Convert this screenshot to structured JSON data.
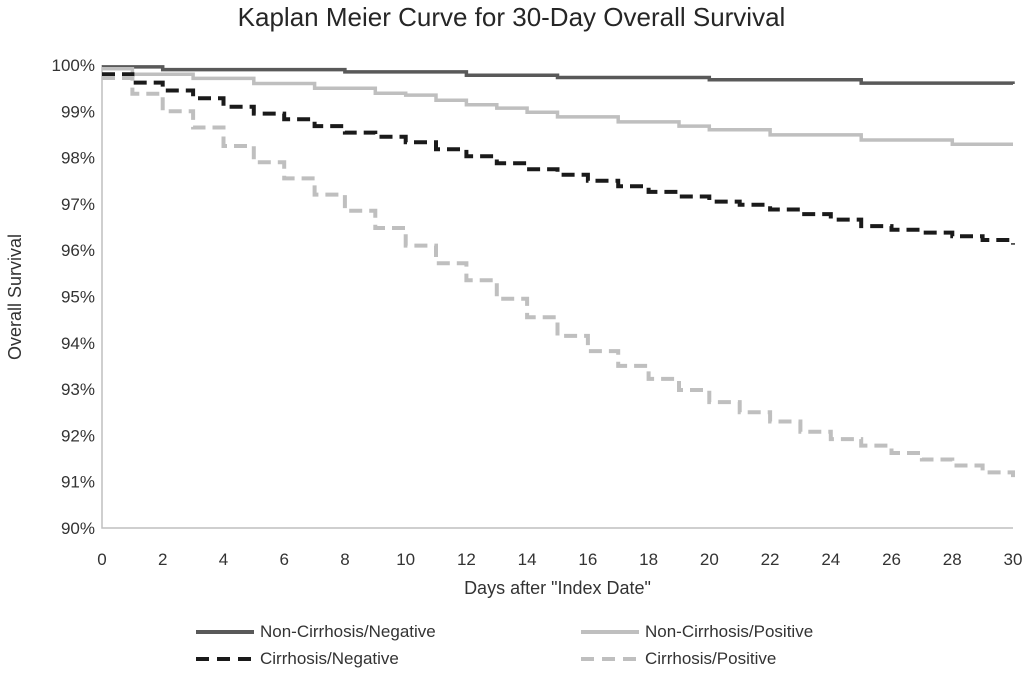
{
  "chart_data": {
    "type": "line",
    "subtype": "kaplan-meier-step",
    "title": "Kaplan Meier Curve for 30-Day Overall Survival",
    "xlabel": "Days after \"Index Date\"",
    "ylabel": "Overall Survival",
    "xlim": [
      0,
      30
    ],
    "ylim": [
      90,
      100
    ],
    "grid": false,
    "axis_line_color": "#BFBFBF",
    "x_ticks": [
      0,
      2,
      4,
      6,
      8,
      10,
      12,
      14,
      16,
      18,
      20,
      22,
      24,
      26,
      28,
      30
    ],
    "y_ticks": [
      "100%",
      "99%",
      "98%",
      "97%",
      "96%",
      "95%",
      "94%",
      "93%",
      "92%",
      "91%",
      "90%"
    ],
    "y_tick_values": [
      100,
      99,
      98,
      97,
      96,
      95,
      94,
      93,
      92,
      91,
      90
    ],
    "x": [
      0,
      1,
      2,
      3,
      4,
      5,
      6,
      7,
      8,
      9,
      10,
      11,
      12,
      13,
      14,
      15,
      16,
      17,
      18,
      19,
      20,
      21,
      22,
      23,
      24,
      25,
      26,
      27,
      28,
      29,
      30
    ],
    "series": [
      {
        "name": "Non-Cirrhosis/Negative",
        "color": "#595959",
        "style": "solid",
        "values": [
          99.96,
          99.96,
          99.9,
          99.9,
          99.9,
          99.9,
          99.9,
          99.9,
          99.85,
          99.85,
          99.85,
          99.85,
          99.78,
          99.78,
          99.78,
          99.73,
          99.73,
          99.73,
          99.73,
          99.73,
          99.68,
          99.68,
          99.68,
          99.68,
          99.68,
          99.61,
          99.61,
          99.61,
          99.61,
          99.61,
          99.59
        ]
      },
      {
        "name": "Non-Cirrhosis/Positive",
        "color": "#BFBFBF",
        "style": "solid",
        "values": [
          99.92,
          99.8,
          99.8,
          99.71,
          99.71,
          99.6,
          99.6,
          99.5,
          99.5,
          99.39,
          99.35,
          99.24,
          99.14,
          99.07,
          98.98,
          98.88,
          98.88,
          98.77,
          98.77,
          98.68,
          98.6,
          98.6,
          98.49,
          98.49,
          98.49,
          98.38,
          98.38,
          98.38,
          98.29,
          98.29,
          98.29
        ]
      },
      {
        "name": "Cirrhosis/Negative",
        "color": "#1A1A1A",
        "style": "dashed",
        "values": [
          99.8,
          99.62,
          99.45,
          99.28,
          99.1,
          98.95,
          98.83,
          98.68,
          98.54,
          98.45,
          98.33,
          98.18,
          98.03,
          97.88,
          97.75,
          97.63,
          97.5,
          97.38,
          97.26,
          97.16,
          97.05,
          96.98,
          96.88,
          96.78,
          96.66,
          96.52,
          96.44,
          96.38,
          96.3,
          96.22,
          96.12
        ]
      },
      {
        "name": "Cirrhosis/Positive",
        "color": "#BFBFBF",
        "style": "dashed",
        "values": [
          99.72,
          99.38,
          99.0,
          98.65,
          98.25,
          97.9,
          97.55,
          97.2,
          96.85,
          96.48,
          96.1,
          95.72,
          95.35,
          94.95,
          94.55,
          94.15,
          93.82,
          93.5,
          93.22,
          92.98,
          92.72,
          92.5,
          92.3,
          92.08,
          91.92,
          91.78,
          91.62,
          91.48,
          91.35,
          91.2,
          91.1
        ]
      }
    ],
    "legend": {
      "position": "bottom",
      "layout": "2x2",
      "order": [
        "Non-Cirrhosis/Negative",
        "Non-Cirrhosis/Positive",
        "Cirrhosis/Negative",
        "Cirrhosis/Positive"
      ]
    }
  }
}
